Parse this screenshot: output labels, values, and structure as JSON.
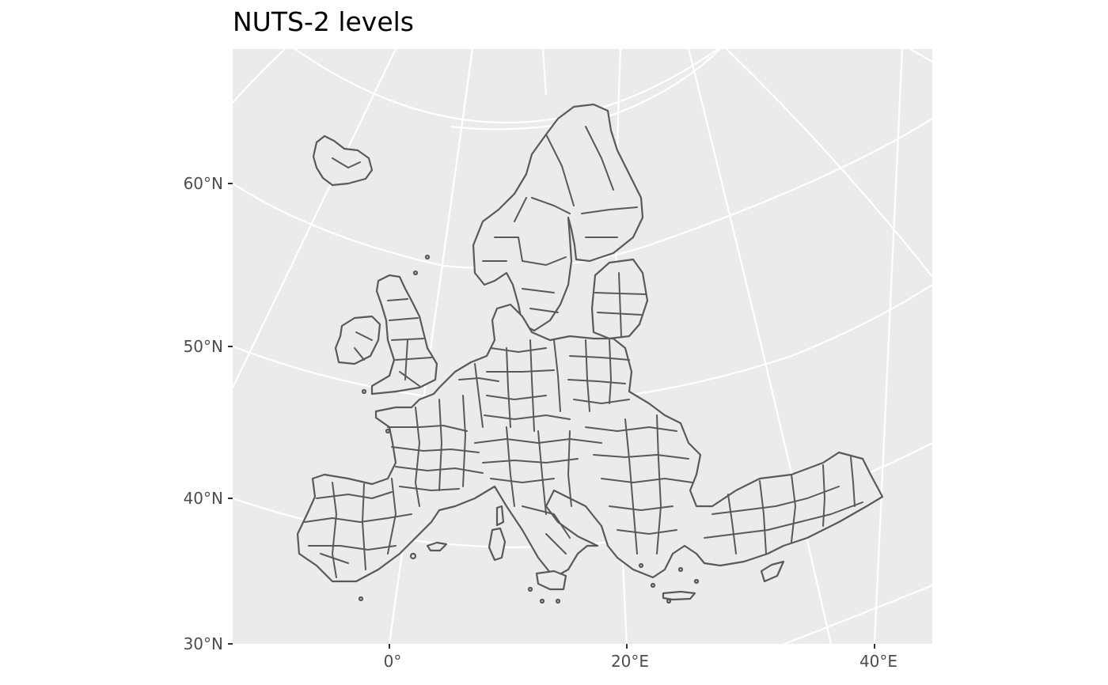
{
  "title": "NUTS-2 levels",
  "map": {
    "region": "Europe",
    "subdivision_level": "NUTS-2",
    "panel_background": "#ebebeb",
    "graticule_color": "#ffffff",
    "border_color": "#595959",
    "region_fill": "#ebebeb"
  },
  "axes": {
    "y_ticks": [
      "60°N",
      "50°N",
      "40°N",
      "30°N"
    ],
    "x_ticks": [
      "0°",
      "20°E",
      "40°E"
    ]
  }
}
